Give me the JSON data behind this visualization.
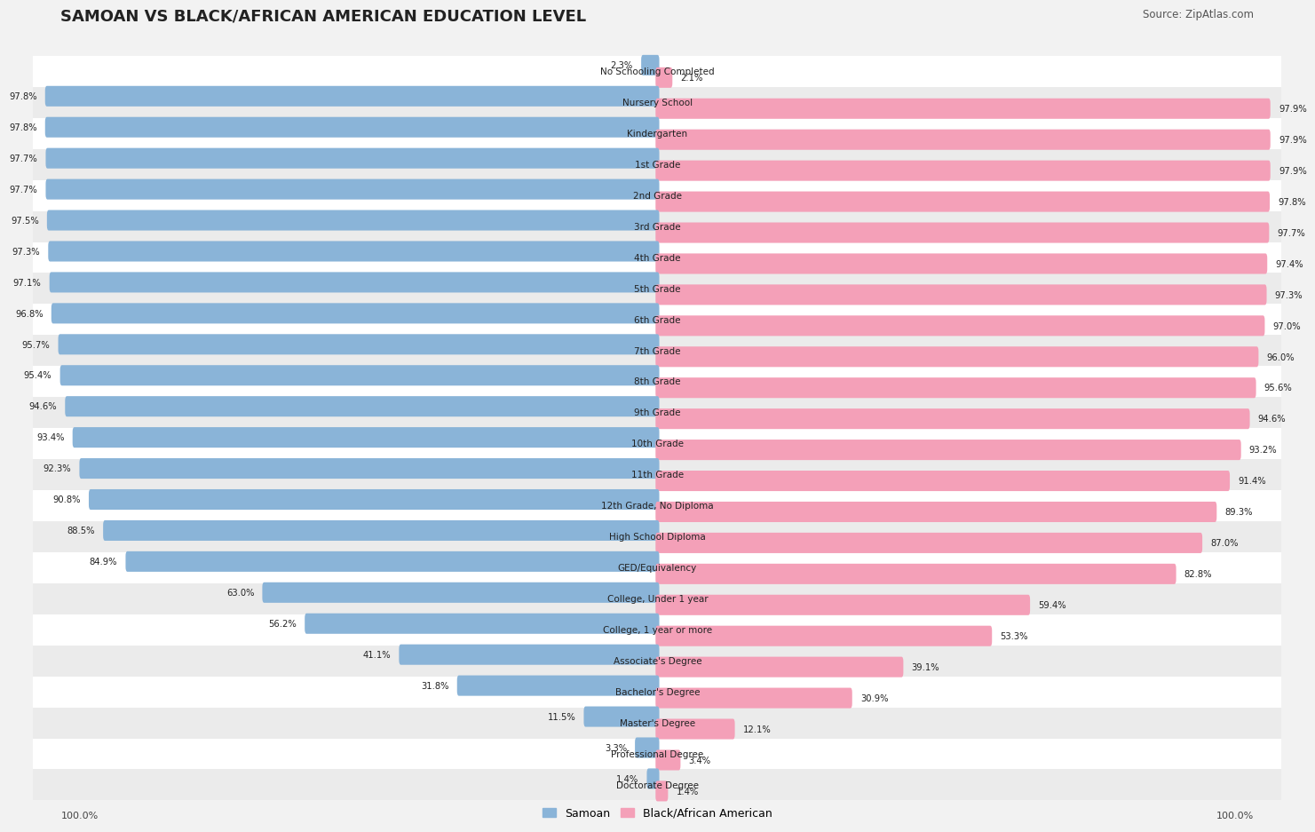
{
  "title": "SAMOAN VS BLACK/AFRICAN AMERICAN EDUCATION LEVEL",
  "source": "Source: ZipAtlas.com",
  "categories": [
    "No Schooling Completed",
    "Nursery School",
    "Kindergarten",
    "1st Grade",
    "2nd Grade",
    "3rd Grade",
    "4th Grade",
    "5th Grade",
    "6th Grade",
    "7th Grade",
    "8th Grade",
    "9th Grade",
    "10th Grade",
    "11th Grade",
    "12th Grade, No Diploma",
    "High School Diploma",
    "GED/Equivalency",
    "College, Under 1 year",
    "College, 1 year or more",
    "Associate's Degree",
    "Bachelor's Degree",
    "Master's Degree",
    "Professional Degree",
    "Doctorate Degree"
  ],
  "samoan": [
    2.3,
    97.8,
    97.8,
    97.7,
    97.7,
    97.5,
    97.3,
    97.1,
    96.8,
    95.7,
    95.4,
    94.6,
    93.4,
    92.3,
    90.8,
    88.5,
    84.9,
    63.0,
    56.2,
    41.1,
    31.8,
    11.5,
    3.3,
    1.4
  ],
  "black": [
    2.1,
    97.9,
    97.9,
    97.9,
    97.8,
    97.7,
    97.4,
    97.3,
    97.0,
    96.0,
    95.6,
    94.6,
    93.2,
    91.4,
    89.3,
    87.0,
    82.8,
    59.4,
    53.3,
    39.1,
    30.9,
    12.1,
    3.4,
    1.4
  ],
  "samoan_color": "#8ab4d8",
  "black_color": "#f4a0b8",
  "background_color": "#f2f2f2",
  "row_bg_light": "#ffffff",
  "row_bg_dark": "#ebebeb"
}
